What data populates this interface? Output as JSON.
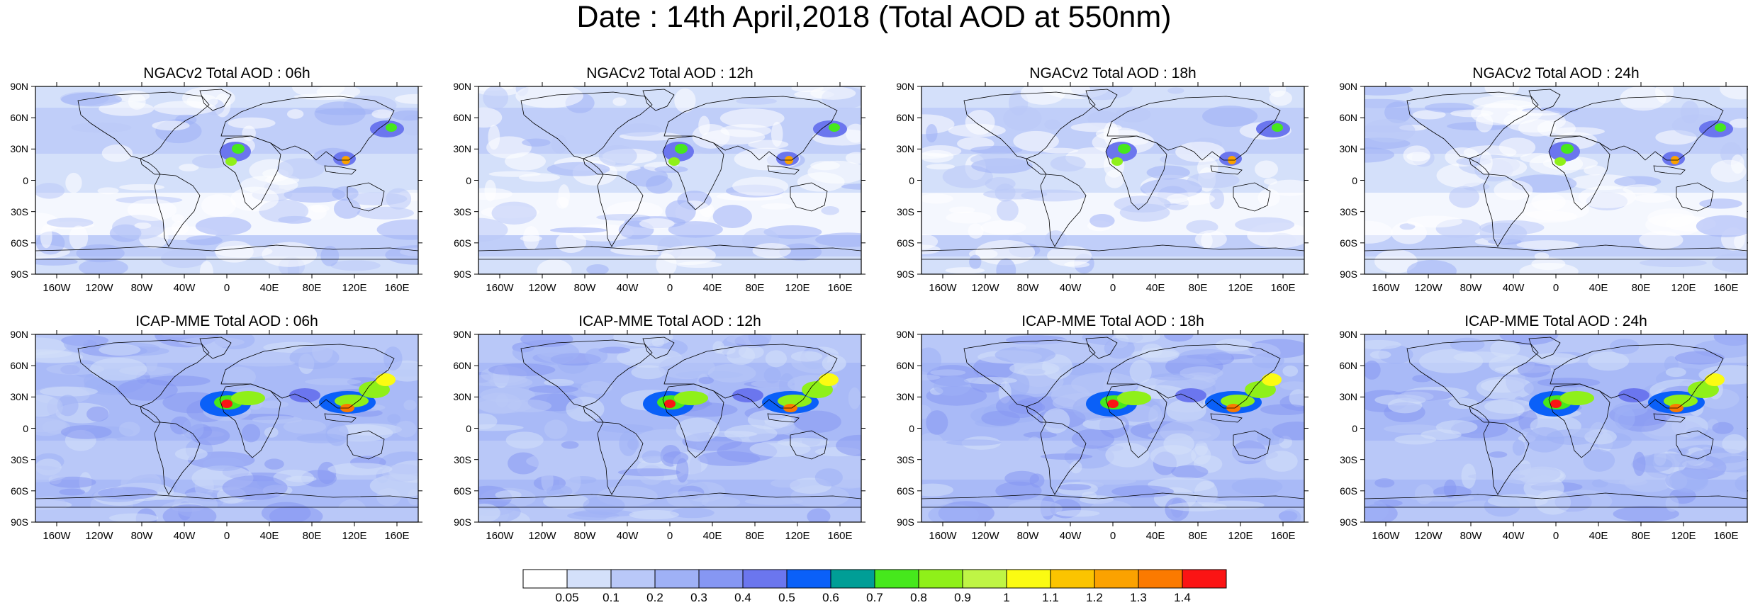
{
  "title": "Date : 14th April,2018 (Total AOD at 550nm)",
  "panels": [
    {
      "title": "NGACv2 Total AOD : 06h"
    },
    {
      "title": "NGACv2 Total AOD : 12h"
    },
    {
      "title": "NGACv2 Total AOD : 18h"
    },
    {
      "title": "NGACv2 Total AOD : 24h"
    },
    {
      "title": "ICAP-MME Total AOD : 06h"
    },
    {
      "title": "ICAP-MME Total AOD : 12h"
    },
    {
      "title": "ICAP-MME Total AOD : 18h"
    },
    {
      "title": "ICAP-MME Total AOD : 24h"
    }
  ],
  "lat_labels": [
    "90N",
    "60N",
    "30N",
    "0",
    "30S",
    "60S",
    "90S"
  ],
  "lon_labels": [
    "160W",
    "120W",
    "80W",
    "40W",
    "0",
    "40E",
    "80E",
    "120E",
    "160E"
  ],
  "colorbar": {
    "colors": [
      "#ffffff",
      "#d4e0fa",
      "#b9c8f8",
      "#9fb1f6",
      "#8697f3",
      "#6b76ee",
      "#0a60f8",
      "#009e96",
      "#46e81c",
      "#8ff019",
      "#bff545",
      "#fbfb12",
      "#fbc400",
      "#fba200",
      "#fb7a00",
      "#fb1414"
    ],
    "labels": [
      "0.05",
      "0.1",
      "0.2",
      "0.3",
      "0.4",
      "0.5",
      "0.6",
      "0.7",
      "0.8",
      "0.9",
      "1",
      "1.1",
      "1.2",
      "1.3",
      "1.4"
    ]
  }
}
